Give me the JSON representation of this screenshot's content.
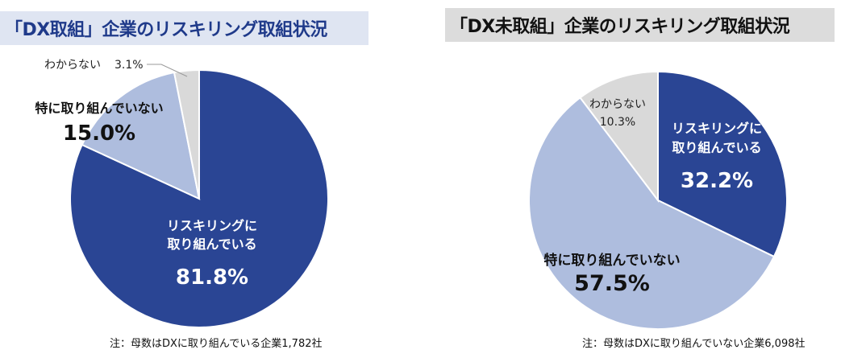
{
  "colors": {
    "dark_blue": "#2a4594",
    "light_blue": "#aebdde",
    "light_gray": "#d9d9d9",
    "left_title_bg": "#dfe5f2",
    "left_title_text": "#1f3a8a",
    "right_title_bg": "#dcdcdc"
  },
  "chart_data": [
    {
      "type": "pie",
      "title": "「DX取組」企業のリスキリング取組状況",
      "note": "注：母数はDXに取り組んでいる企業1,782社",
      "slices": [
        {
          "label": "リスキリングに取り組んでいる",
          "label_lines": [
            "リスキリングに",
            "取り組んでいる"
          ],
          "value": 81.8,
          "value_text": "81.8%",
          "color": "#2a4594"
        },
        {
          "label": "特に取り組んでいない",
          "label_lines": [
            "特に取り組んでいない"
          ],
          "value": 15.0,
          "value_text": "15.0%",
          "color": "#aebdde"
        },
        {
          "label": "わからない",
          "label_lines": [
            "わからない"
          ],
          "value": 3.1,
          "value_text": "3.1%",
          "color": "#d9d9d9"
        }
      ]
    },
    {
      "type": "pie",
      "title": "「DX未取組」企業のリスキリング取組状況",
      "note": "注：母数はDXに取り組んでいない企業6,098社",
      "slices": [
        {
          "label": "リスキリングに取り組んでいる",
          "label_lines": [
            "リスキリングに",
            "取り組んでいる"
          ],
          "value": 32.2,
          "value_text": "32.2%",
          "color": "#2a4594"
        },
        {
          "label": "特に取り組んでいない",
          "label_lines": [
            "特に取り組んでいない"
          ],
          "value": 57.5,
          "value_text": "57.5%",
          "color": "#aebdde"
        },
        {
          "label": "わからない",
          "label_lines": [
            "わからない"
          ],
          "value": 10.3,
          "value_text": "10.3%",
          "color": "#d9d9d9"
        }
      ]
    }
  ]
}
